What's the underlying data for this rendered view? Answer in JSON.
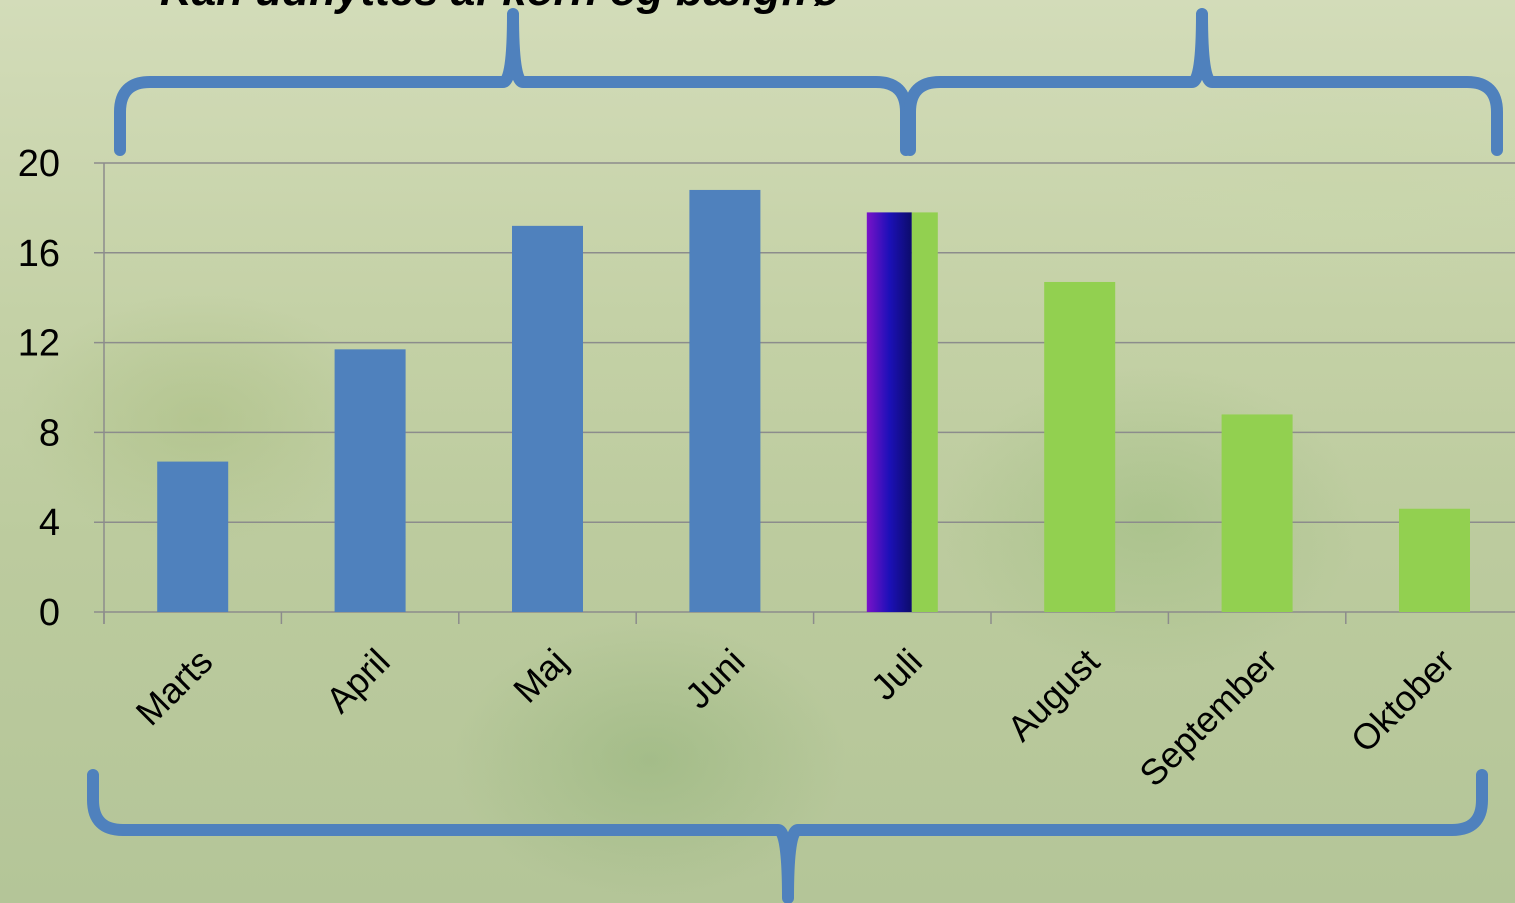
{
  "header": {
    "title": "Kan udnyttes af korn og bælgfrø"
  },
  "colors": {
    "blue_bars": "#4f81bd",
    "green_bars": "#92d050",
    "bracket": "#4f81bd",
    "grid": "#8c8c8c",
    "juli_gradient": [
      "#7a12c8",
      "#1c10b8",
      "#0c0c6a"
    ]
  },
  "chart_data": {
    "type": "bar",
    "categories": [
      "Marts",
      "April",
      "Maj",
      "Juni",
      "Juli",
      "August",
      "September",
      "Oktober"
    ],
    "values": [
      6.7,
      11.7,
      17.2,
      18.8,
      17.8,
      14.7,
      8.8,
      4.6
    ],
    "bar_colors": [
      "blue",
      "blue",
      "blue",
      "blue",
      "split",
      "green",
      "green",
      "green"
    ],
    "ylim": [
      0,
      20
    ],
    "yticks": [
      "0",
      "4",
      "8",
      "12",
      "16",
      "20"
    ],
    "xlabel": "",
    "ylabel": "",
    "grid": true,
    "legend": "none"
  }
}
